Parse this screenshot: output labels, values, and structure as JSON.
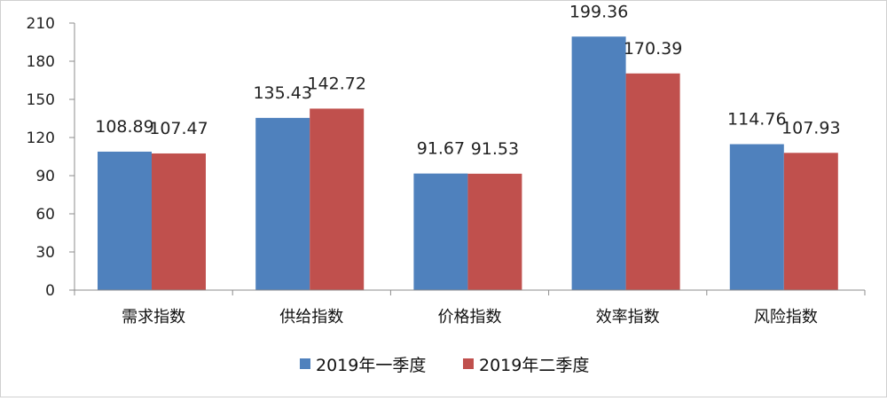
{
  "chart_data": {
    "type": "bar",
    "categories": [
      "需求指数",
      "供给指数",
      "价格指数",
      "效率指数",
      "风险指数"
    ],
    "series": [
      {
        "name": "2019年一季度",
        "values": [
          108.89,
          135.43,
          91.67,
          199.36,
          114.76
        ],
        "color": "#4F81BD"
      },
      {
        "name": "2019年二季度",
        "values": [
          107.47,
          142.72,
          91.53,
          170.39,
          107.93
        ],
        "color": "#C0504D"
      }
    ],
    "data_labels": [
      [
        "108.89",
        "135.43",
        "91.67",
        "199.36",
        "114.76"
      ],
      [
        "107.47",
        "142.72",
        "91.53",
        "170.39",
        "107.93"
      ]
    ],
    "yticks": [
      "0",
      "30",
      "60",
      "90",
      "120",
      "150",
      "180",
      "210"
    ],
    "ylim": [
      0,
      210
    ],
    "legend_position": "bottom",
    "grid": false
  }
}
